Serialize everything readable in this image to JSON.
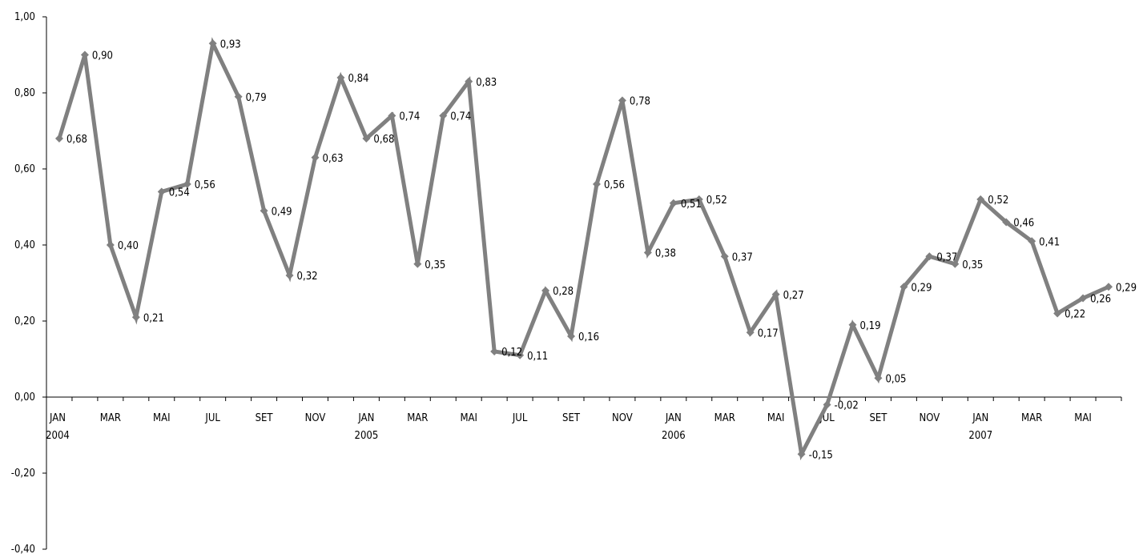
{
  "chart_data": {
    "type": "line",
    "title": "",
    "xlabel": "",
    "ylabel": "",
    "ylim": [
      -0.4,
      1.0
    ],
    "ytick_values": [
      1.0,
      0.8,
      0.6,
      0.4,
      0.2,
      0.0,
      -0.2,
      -0.4
    ],
    "ytick_labels": [
      "1,00",
      "0,80",
      "0,60",
      "0,40",
      "0,20",
      "0,00",
      "-0,20",
      "-0,40"
    ],
    "x_month_labels": [
      "JAN",
      "MAR",
      "MAI",
      "JUL",
      "SET",
      "NOV",
      "JAN",
      "MAR",
      "MAI",
      "JUL",
      "SET",
      "NOV",
      "JAN",
      "MAR",
      "MAI",
      "JUL",
      "SET",
      "NOV",
      "JAN",
      "MAR",
      "MAI"
    ],
    "x_year_labels": [
      "2004",
      "2005",
      "2006",
      "2007"
    ],
    "series": [
      {
        "values": [
          0.68,
          0.9,
          0.4,
          0.21,
          0.54,
          0.56,
          0.93,
          0.79,
          0.49,
          0.32,
          0.63,
          0.84,
          0.68,
          0.74,
          0.35,
          0.74,
          0.83,
          0.12,
          0.11,
          0.28,
          0.16,
          0.56,
          0.78,
          0.38,
          0.51,
          0.52,
          0.37,
          0.17,
          0.27,
          -0.15,
          -0.02,
          0.19,
          0.05,
          0.29,
          0.37,
          0.35,
          0.52,
          0.46,
          0.41,
          0.22,
          0.26,
          0.29
        ],
        "labels": [
          "0,68",
          "0,90",
          "0,40",
          "0,21",
          "0,54",
          "0,56",
          "0,93",
          "0,79",
          "0,49",
          "0,32",
          "0,63",
          "0,84",
          "0,68",
          "0,74",
          "0,35",
          "0,74",
          "0,83",
          "0,12",
          "0,11",
          "0,28",
          "0,16",
          "0,56",
          "0,78",
          "0,38",
          "0,51",
          "0,52",
          "0,37",
          "0,17",
          "0,27",
          "-0,15",
          "-0,02",
          "0,19",
          "0,05",
          "0,29",
          "0,37",
          "0,35",
          "0,52",
          "0,46",
          "0,41",
          "0,22",
          "0,26",
          "0,29"
        ],
        "color": "#808080"
      }
    ],
    "grid": false,
    "legend": "none"
  }
}
